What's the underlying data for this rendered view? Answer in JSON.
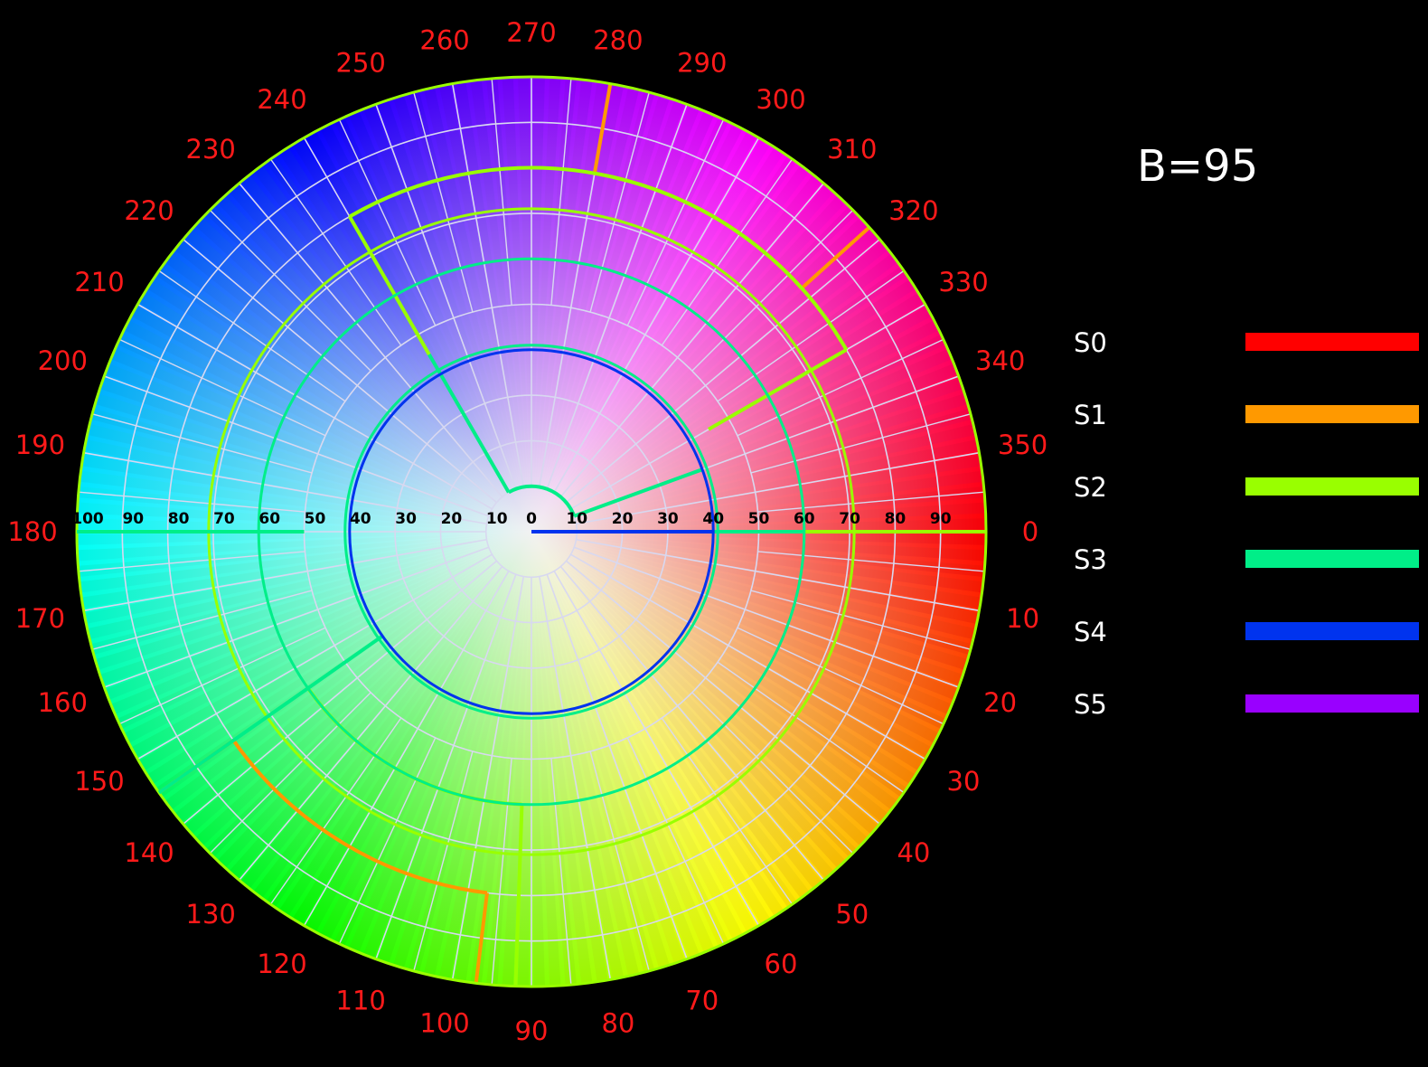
{
  "chart_data": {
    "type": "polar",
    "title": "B=95",
    "angle_unit": "degrees",
    "angle_direction": "clockwise",
    "angle_zero": "right",
    "angle_ticks": [
      "0",
      "10",
      "20",
      "30",
      "40",
      "50",
      "60",
      "70",
      "80",
      "90",
      "100",
      "110",
      "120",
      "130",
      "140",
      "150",
      "160",
      "170",
      "180",
      "190",
      "200",
      "210",
      "220",
      "230",
      "240",
      "250",
      "260",
      "270",
      "280",
      "290",
      "300",
      "310",
      "320",
      "330",
      "340",
      "350"
    ],
    "radial_ticks_right": [
      "0",
      "10",
      "20",
      "30",
      "40",
      "50",
      "60",
      "70",
      "80",
      "90"
    ],
    "radial_ticks_left": [
      "100",
      "90",
      "80",
      "70",
      "60",
      "50",
      "40",
      "30",
      "20",
      "10"
    ],
    "radial_range": [
      0,
      100
    ],
    "grid": true,
    "background": "hue-saturation color wheel at brightness 95",
    "legend": {
      "position": "right",
      "entries": [
        {
          "name": "S0",
          "color": "#ff0000"
        },
        {
          "name": "S1",
          "color": "#ff9900"
        },
        {
          "name": "S2",
          "color": "#99ff00"
        },
        {
          "name": "S3",
          "color": "#00ee88"
        },
        {
          "name": "S4",
          "color": "#0033ee"
        },
        {
          "name": "S5",
          "color": "#9900ff"
        }
      ]
    },
    "series": [
      {
        "name": "S1",
        "color": "#ff9900",
        "boundary": [
          {
            "from": 280,
            "to": 318,
            "r": 80
          },
          {
            "ray": 280,
            "r1": 80,
            "r2": 100
          },
          {
            "ray": 318,
            "r1": 80,
            "r2": 100
          },
          {
            "from": 97,
            "to": 145,
            "r": 80
          },
          {
            "ray": 97,
            "r1": 80,
            "r2": 100
          },
          {
            "ray": 145,
            "r1": 80,
            "r2": 100
          }
        ]
      },
      {
        "name": "S2",
        "color": "#99ff00",
        "boundary": [
          {
            "from": 0,
            "to": 360,
            "r": 100
          },
          {
            "from": 240,
            "to": 330,
            "r": 80
          },
          {
            "from": 0,
            "to": 360,
            "r": 71
          },
          {
            "ray": 240,
            "r1": 45,
            "r2": 80
          },
          {
            "ray": 330,
            "r1": 45,
            "r2": 80
          },
          {
            "from": 92,
            "to": 145,
            "r": 60
          },
          {
            "ray": 92,
            "r1": 60,
            "r2": 100
          },
          {
            "ray": 0,
            "r1": 60,
            "r2": 100
          }
        ]
      },
      {
        "name": "S3",
        "color": "#00ee88",
        "boundary": [
          {
            "from": 0,
            "to": 360,
            "r": 60
          },
          {
            "from": 0,
            "to": 360,
            "r": 41
          },
          {
            "ray": 240,
            "r1": 10,
            "r2": 45
          },
          {
            "ray": 340,
            "r1": 10,
            "r2": 40
          },
          {
            "from": 240,
            "to": 340,
            "r": 10
          },
          {
            "ray": 145,
            "r1": 40,
            "r2": 100
          },
          {
            "ray": 180,
            "r1": 50,
            "r2": 100
          },
          {
            "ray": 0,
            "r1": 40,
            "r2": 60
          }
        ]
      },
      {
        "name": "S4",
        "color": "#0033ee",
        "boundary": [
          {
            "from": 0,
            "to": 360,
            "r": 40
          },
          {
            "ray": 0,
            "r1": 0,
            "r2": 40
          }
        ]
      },
      {
        "name": "S5",
        "color": "#9900ff",
        "boundary": []
      }
    ]
  }
}
